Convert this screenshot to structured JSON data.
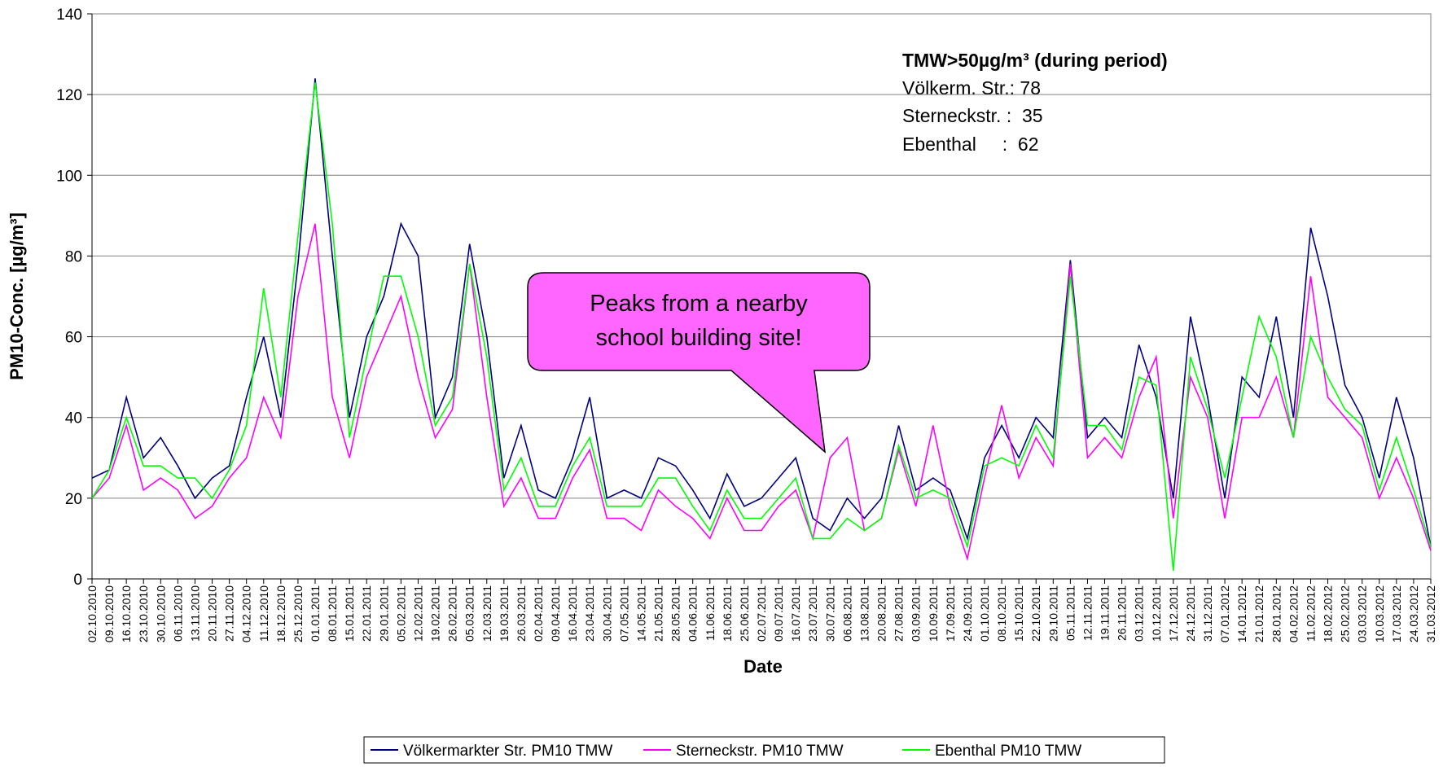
{
  "chart_data": {
    "type": "line",
    "y_label": "PM10-Conc. [µg/m³]",
    "x_label": "Date",
    "categories": [
      "02.10.2010",
      "09.10.2010",
      "16.10.2010",
      "23.10.2010",
      "30.10.2010",
      "06.11.2010",
      "13.11.2010",
      "20.11.2010",
      "27.11.2010",
      "04.12.2010",
      "11.12.2010",
      "18.12.2010",
      "25.12.2010",
      "01.01.2011",
      "08.01.2011",
      "15.01.2011",
      "22.01.2011",
      "29.01.2011",
      "05.02.2011",
      "12.02.2011",
      "19.02.2011",
      "26.02.2011",
      "05.03.2011",
      "12.03.2011",
      "19.03.2011",
      "26.03.2011",
      "02.04.2011",
      "09.04.2011",
      "16.04.2011",
      "23.04.2011",
      "30.04.2011",
      "07.05.2011",
      "14.05.2011",
      "21.05.2011",
      "28.05.2011",
      "04.06.2011",
      "11.06.2011",
      "18.06.2011",
      "25.06.2011",
      "02.07.2011",
      "09.07.2011",
      "16.07.2011",
      "23.07.2011",
      "30.07.2011",
      "06.08.2011",
      "13.08.2011",
      "20.08.2011",
      "27.08.2011",
      "03.09.2011",
      "10.09.2011",
      "17.09.2011",
      "24.09.2011",
      "01.10.2011",
      "08.10.2011",
      "15.10.2011",
      "22.10.2011",
      "29.10.2011",
      "05.11.2011",
      "12.11.2011",
      "19.11.2011",
      "26.11.2011",
      "03.12.2011",
      "10.12.2011",
      "17.12.2011",
      "24.12.2011",
      "31.12.2011",
      "07.01.2012",
      "14.01.2012",
      "21.01.2012",
      "28.01.2012",
      "04.02.2012",
      "11.02.2012",
      "18.02.2012",
      "25.02.2012",
      "03.03.2012",
      "10.03.2012",
      "17.03.2012",
      "24.03.2012",
      "31.03.2012"
    ],
    "series": [
      {
        "name": "Völkermarkter Str. PM10 TMW",
        "color": "#000080",
        "values": [
          25,
          27,
          45,
          30,
          35,
          28,
          20,
          25,
          28,
          45,
          60,
          40,
          78,
          124,
          80,
          40,
          60,
          70,
          88,
          80,
          40,
          50,
          83,
          60,
          25,
          38,
          22,
          20,
          30,
          45,
          20,
          22,
          20,
          30,
          28,
          22,
          15,
          26,
          18,
          20,
          25,
          30,
          15,
          12,
          20,
          15,
          20,
          38,
          22,
          25,
          22,
          10,
          30,
          38,
          30,
          40,
          35,
          79,
          35,
          40,
          35,
          58,
          45,
          20,
          65,
          45,
          20,
          50,
          45,
          65,
          40,
          87,
          70,
          48,
          40,
          25,
          45,
          30,
          8
        ]
      },
      {
        "name": "Sterneckstr. PM10 TMW",
        "color": "#ff00ff",
        "values": [
          20,
          25,
          38,
          22,
          25,
          22,
          15,
          18,
          25,
          30,
          45,
          35,
          70,
          88,
          45,
          30,
          50,
          60,
          70,
          50,
          35,
          42,
          78,
          45,
          18,
          25,
          15,
          15,
          25,
          32,
          15,
          15,
          12,
          22,
          18,
          15,
          10,
          20,
          12,
          12,
          18,
          22,
          10,
          30,
          35,
          12,
          15,
          32,
          18,
          38,
          18,
          5,
          25,
          43,
          25,
          35,
          28,
          78,
          30,
          35,
          30,
          45,
          55,
          15,
          50,
          40,
          15,
          40,
          40,
          50,
          35,
          75,
          45,
          40,
          35,
          20,
          30,
          20,
          7
        ]
      },
      {
        "name": "Ebenthal PM10 TMW",
        "color": "#00ff00",
        "values": [
          20,
          27,
          40,
          28,
          28,
          25,
          25,
          20,
          27,
          38,
          72,
          45,
          85,
          123,
          88,
          35,
          55,
          75,
          75,
          60,
          38,
          45,
          78,
          55,
          22,
          30,
          18,
          18,
          28,
          35,
          18,
          18,
          18,
          25,
          25,
          18,
          12,
          22,
          15,
          15,
          20,
          25,
          10,
          10,
          15,
          12,
          15,
          33,
          20,
          22,
          20,
          8,
          28,
          30,
          28,
          38,
          30,
          75,
          38,
          38,
          32,
          50,
          48,
          2,
          55,
          42,
          25,
          45,
          65,
          55,
          35,
          60,
          50,
          42,
          38,
          22,
          35,
          22,
          8
        ]
      }
    ],
    "ylim": [
      0,
      140
    ],
    "yticks": [
      0,
      20,
      40,
      60,
      80,
      100,
      120,
      140
    ],
    "grid": true,
    "legend": "bottom",
    "annotations": {
      "summary_title": "TMW>50µg/m³ (during period)",
      "summary_lines": [
        "Völkerm. Str.: 78",
        "Sterneckstr. :  35",
        "Ebenthal     :  62"
      ],
      "callout": [
        "Peaks from a nearby",
        "school building site!"
      ]
    }
  }
}
